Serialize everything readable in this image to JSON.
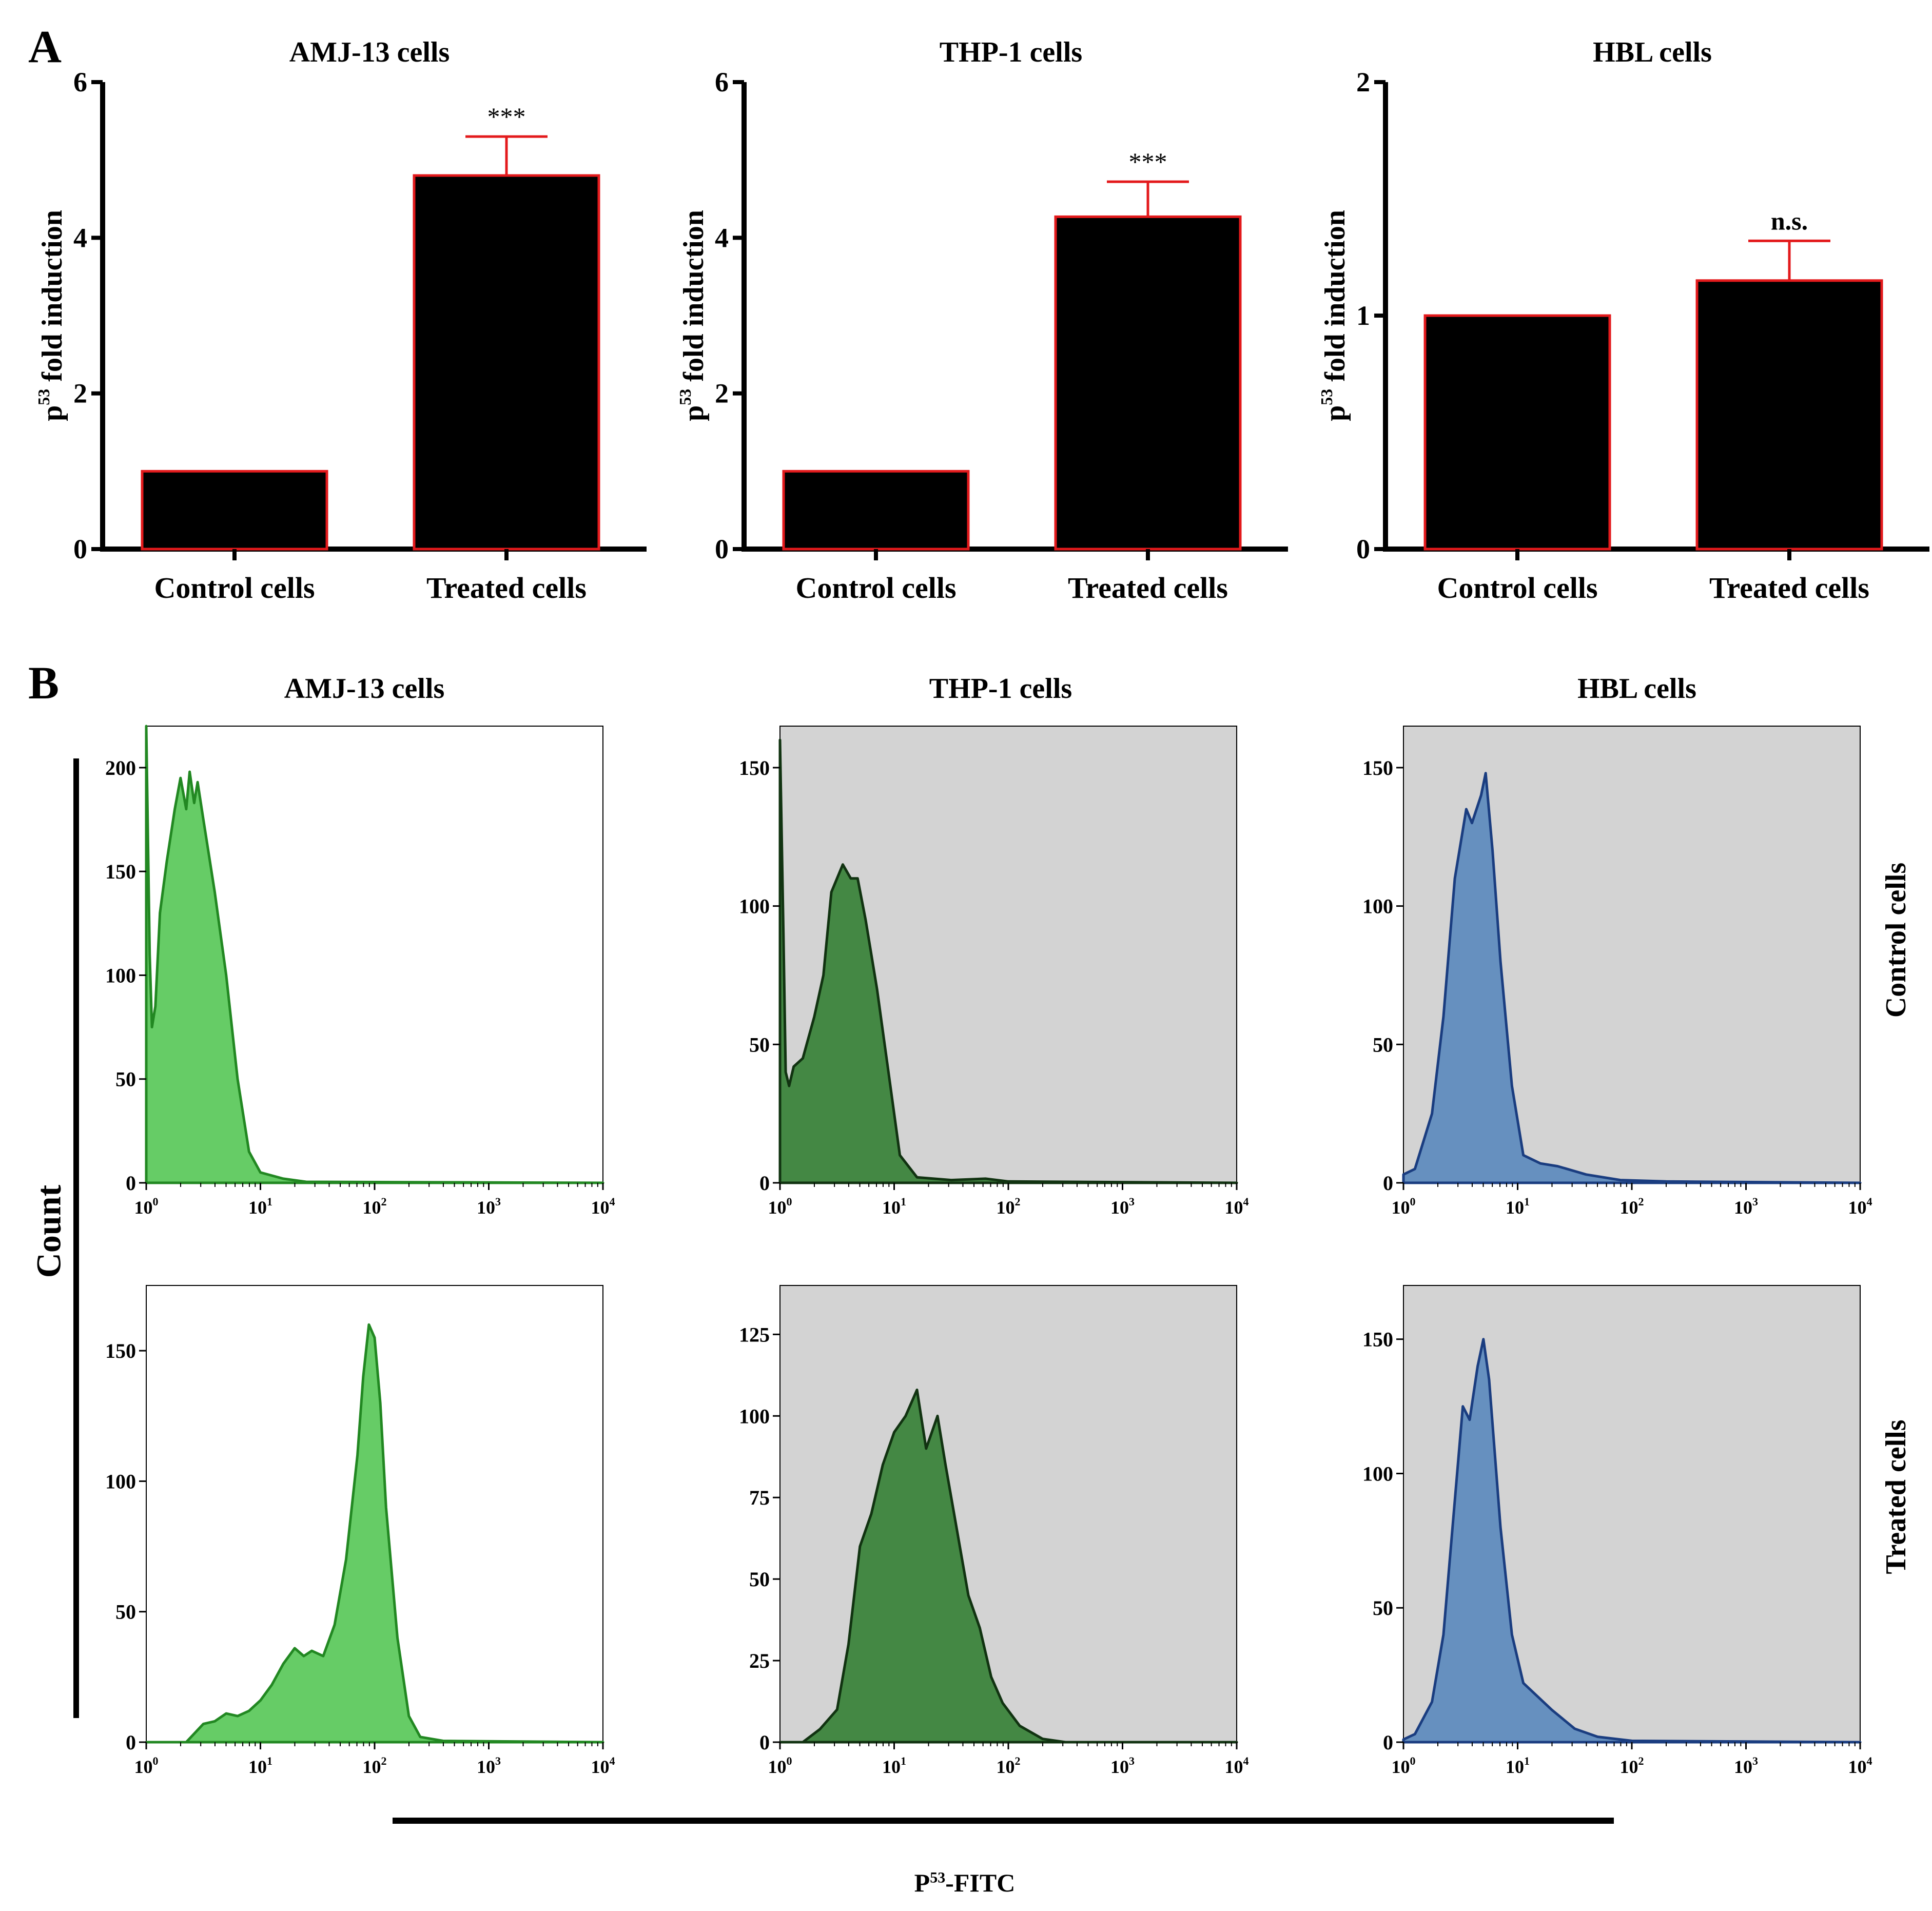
{
  "panels": {
    "a": "A",
    "b": "B"
  },
  "chart_data": [
    {
      "type": "bar",
      "title": "AMJ-13 cells",
      "ylabel": "fold induction",
      "ylabel_prefix": "p",
      "ylabel_sup": "53",
      "categories": [
        "Control cells",
        "Treated cells"
      ],
      "values": [
        1.0,
        4.8
      ],
      "errors": [
        0.0,
        0.5
      ],
      "annotations": [
        "",
        "***"
      ],
      "ylim": [
        0,
        6
      ],
      "yticks": [
        0,
        2,
        4,
        6
      ]
    },
    {
      "type": "bar",
      "title": "THP-1 cells",
      "ylabel": "fold induction",
      "ylabel_prefix": "p",
      "ylabel_sup": "53",
      "categories": [
        "Control cells",
        "Treated cells"
      ],
      "values": [
        1.0,
        4.27
      ],
      "errors": [
        0.0,
        0.45
      ],
      "annotations": [
        "",
        "***"
      ],
      "ylim": [
        0,
        6
      ],
      "yticks": [
        0,
        2,
        4,
        6
      ]
    },
    {
      "type": "bar",
      "title": "HBL cells",
      "ylabel": "fold induction",
      "ylabel_prefix": "p",
      "ylabel_sup": "53",
      "categories": [
        "Control cells",
        "Treated cells"
      ],
      "values": [
        1.0,
        1.15
      ],
      "errors": [
        0.0,
        0.17
      ],
      "annotations": [
        "",
        "n.s."
      ],
      "ylim": [
        0,
        2
      ],
      "yticks": [
        0,
        1,
        2
      ]
    }
  ],
  "histograms": {
    "column_titles": [
      "AMJ-13 cells",
      "THP-1 cells",
      "HBL cells"
    ],
    "row_labels": [
      "Control cells",
      "Treated cells"
    ],
    "y_axis_title": "Count",
    "x_axis_title_prefix": "P",
    "x_axis_title_sup": "53",
    "x_axis_title_suffix": "-FITC",
    "xtick_base": "10",
    "xtick_exponents": [
      "0",
      "1",
      "2",
      "3",
      "4"
    ],
    "colors": {
      "light_green": "#66cc66",
      "dark_green": "#448844",
      "blue": "#6690bf",
      "light_edge": "#228822",
      "dark_edge": "#113311",
      "blue_edge": "#1a3d80",
      "gray_bg": "#d3d3d3"
    },
    "plots": [
      {
        "row": 0,
        "col": 0,
        "ymax": 220,
        "yticks": [
          0,
          50,
          100,
          150,
          200
        ],
        "fill": "light_green",
        "edge": "light_edge",
        "bg": "#ffffff",
        "points": [
          [
            0,
            0
          ],
          [
            0,
            220
          ],
          [
            0.03,
            110
          ],
          [
            0.05,
            75
          ],
          [
            0.08,
            85
          ],
          [
            0.12,
            130
          ],
          [
            0.18,
            155
          ],
          [
            0.25,
            180
          ],
          [
            0.3,
            195
          ],
          [
            0.35,
            180
          ],
          [
            0.38,
            198
          ],
          [
            0.42,
            183
          ],
          [
            0.45,
            193
          ],
          [
            0.5,
            175
          ],
          [
            0.6,
            140
          ],
          [
            0.7,
            100
          ],
          [
            0.8,
            50
          ],
          [
            0.9,
            15
          ],
          [
            1.0,
            5
          ],
          [
            1.2,
            2
          ],
          [
            1.4,
            0.5
          ],
          [
            4,
            0
          ]
        ]
      },
      {
        "row": 0,
        "col": 1,
        "ymax": 165,
        "yticks": [
          0,
          50,
          100,
          150
        ],
        "fill": "dark_green",
        "edge": "dark_edge",
        "bg": "gray_bg",
        "points": [
          [
            0,
            0
          ],
          [
            0,
            160
          ],
          [
            0.03,
            90
          ],
          [
            0.05,
            40
          ],
          [
            0.08,
            35
          ],
          [
            0.12,
            42
          ],
          [
            0.2,
            45
          ],
          [
            0.3,
            60
          ],
          [
            0.38,
            75
          ],
          [
            0.45,
            105
          ],
          [
            0.55,
            115
          ],
          [
            0.62,
            110
          ],
          [
            0.68,
            110
          ],
          [
            0.75,
            95
          ],
          [
            0.85,
            70
          ],
          [
            0.95,
            40
          ],
          [
            1.05,
            10
          ],
          [
            1.2,
            2
          ],
          [
            1.5,
            1
          ],
          [
            1.8,
            1.5
          ],
          [
            2,
            0.5
          ],
          [
            4,
            0
          ]
        ]
      },
      {
        "row": 0,
        "col": 2,
        "ymax": 165,
        "yticks": [
          0,
          50,
          100,
          150
        ],
        "fill": "blue",
        "edge": "blue_edge",
        "bg": "gray_bg",
        "points": [
          [
            0,
            0
          ],
          [
            0,
            3
          ],
          [
            0.1,
            5
          ],
          [
            0.25,
            25
          ],
          [
            0.35,
            60
          ],
          [
            0.45,
            110
          ],
          [
            0.55,
            135
          ],
          [
            0.6,
            130
          ],
          [
            0.68,
            140
          ],
          [
            0.72,
            148
          ],
          [
            0.78,
            120
          ],
          [
            0.85,
            80
          ],
          [
            0.95,
            35
          ],
          [
            1.05,
            10
          ],
          [
            1.2,
            7
          ],
          [
            1.35,
            6
          ],
          [
            1.6,
            3
          ],
          [
            1.9,
            1
          ],
          [
            2.3,
            0.5
          ],
          [
            4,
            0
          ]
        ]
      },
      {
        "row": 1,
        "col": 0,
        "ymax": 175,
        "yticks": [
          0,
          50,
          100,
          150
        ],
        "fill": "light_green",
        "edge": "light_edge",
        "bg": "#ffffff",
        "points": [
          [
            0,
            0
          ],
          [
            0.35,
            0
          ],
          [
            0.5,
            7
          ],
          [
            0.6,
            8
          ],
          [
            0.7,
            11
          ],
          [
            0.8,
            10
          ],
          [
            0.9,
            12
          ],
          [
            1,
            16
          ],
          [
            1.1,
            22
          ],
          [
            1.2,
            30
          ],
          [
            1.3,
            36
          ],
          [
            1.38,
            33
          ],
          [
            1.45,
            35
          ],
          [
            1.55,
            33
          ],
          [
            1.65,
            45
          ],
          [
            1.75,
            70
          ],
          [
            1.85,
            110
          ],
          [
            1.9,
            140
          ],
          [
            1.95,
            160
          ],
          [
            2,
            155
          ],
          [
            2.05,
            130
          ],
          [
            2.1,
            90
          ],
          [
            2.2,
            40
          ],
          [
            2.3,
            10
          ],
          [
            2.4,
            2
          ],
          [
            2.6,
            0.5
          ],
          [
            4,
            0
          ]
        ]
      },
      {
        "row": 1,
        "col": 1,
        "ymax": 140,
        "yticks": [
          0,
          25,
          50,
          75,
          100,
          125
        ],
        "fill": "dark_green",
        "edge": "dark_edge",
        "bg": "gray_bg",
        "points": [
          [
            0,
            0
          ],
          [
            0.2,
            0
          ],
          [
            0.35,
            4
          ],
          [
            0.5,
            10
          ],
          [
            0.6,
            30
          ],
          [
            0.7,
            60
          ],
          [
            0.8,
            70
          ],
          [
            0.9,
            85
          ],
          [
            1,
            95
          ],
          [
            1.1,
            100
          ],
          [
            1.2,
            108
          ],
          [
            1.28,
            90
          ],
          [
            1.38,
            100
          ],
          [
            1.45,
            85
          ],
          [
            1.55,
            65
          ],
          [
            1.65,
            45
          ],
          [
            1.75,
            35
          ],
          [
            1.85,
            20
          ],
          [
            1.95,
            12
          ],
          [
            2.1,
            5
          ],
          [
            2.3,
            1
          ],
          [
            2.5,
            0
          ],
          [
            4,
            0
          ]
        ]
      },
      {
        "row": 1,
        "col": 2,
        "ymax": 170,
        "yticks": [
          0,
          50,
          100,
          150
        ],
        "fill": "blue",
        "edge": "blue_edge",
        "bg": "gray_bg",
        "points": [
          [
            0,
            0
          ],
          [
            0,
            1
          ],
          [
            0.1,
            3
          ],
          [
            0.25,
            15
          ],
          [
            0.35,
            40
          ],
          [
            0.45,
            90
          ],
          [
            0.52,
            125
          ],
          [
            0.58,
            120
          ],
          [
            0.65,
            140
          ],
          [
            0.7,
            150
          ],
          [
            0.75,
            135
          ],
          [
            0.85,
            80
          ],
          [
            0.95,
            40
          ],
          [
            1.05,
            22
          ],
          [
            1.15,
            18
          ],
          [
            1.3,
            12
          ],
          [
            1.5,
            5
          ],
          [
            1.7,
            2
          ],
          [
            2,
            0.5
          ],
          [
            4,
            0
          ]
        ]
      }
    ]
  }
}
